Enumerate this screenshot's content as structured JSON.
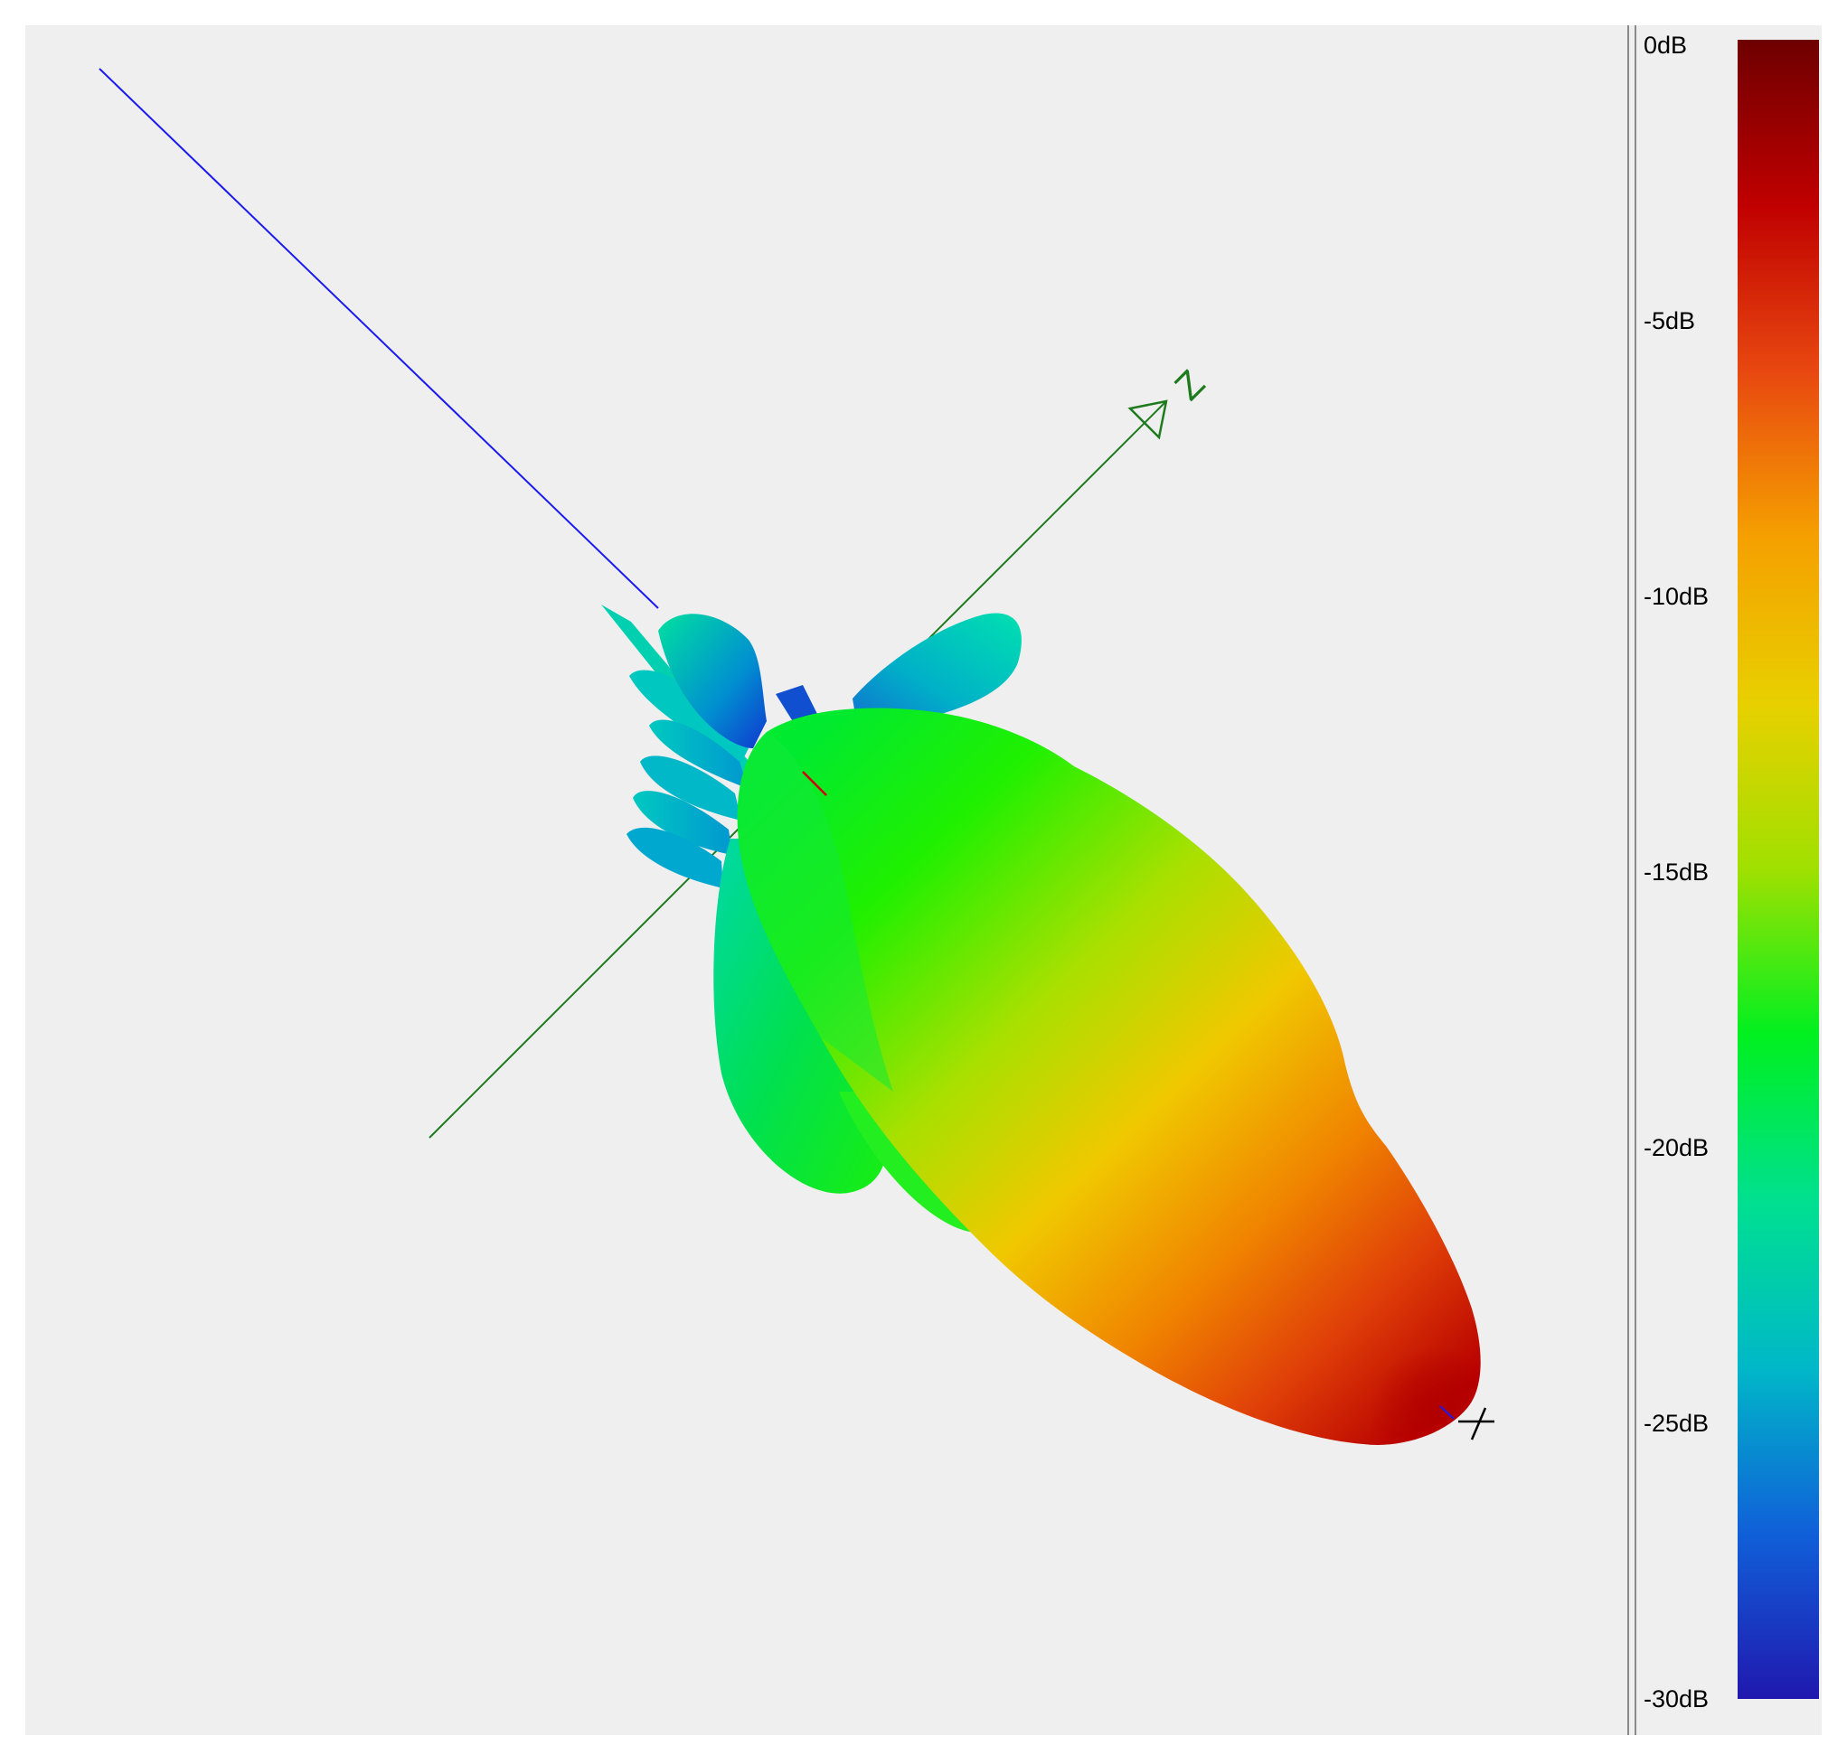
{
  "viewport": {
    "axis_label": "Z",
    "colors": {
      "background": "#efefef",
      "axis_blue": "#1a1aee",
      "axis_green": "#1d7a1d",
      "marker_red": "#d00000"
    }
  },
  "legend": {
    "ticks": [
      "0dB",
      "-5dB",
      "-10dB",
      "-15dB",
      "-20dB",
      "-25dB",
      "-30dB"
    ],
    "colormap": [
      "#6e0000",
      "#c00000",
      "#e84810",
      "#f5a000",
      "#e8d000",
      "#a0e000",
      "#00f020",
      "#00e090",
      "#00b8c8",
      "#1060d8",
      "#2018b0"
    ]
  }
}
